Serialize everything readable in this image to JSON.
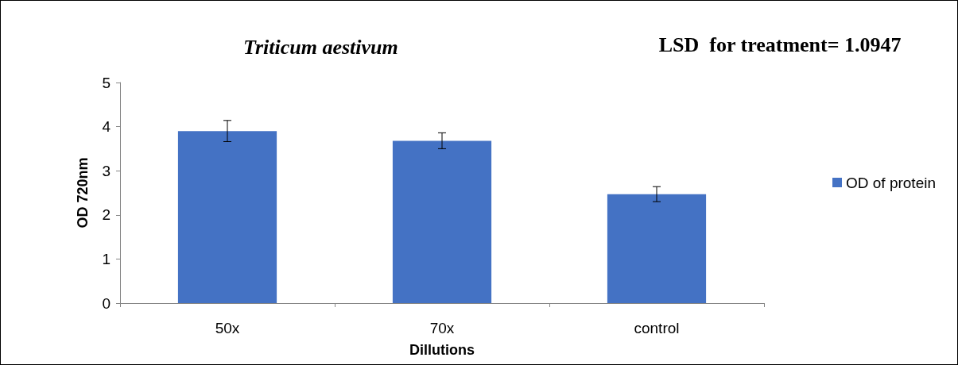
{
  "chart_data": {
    "type": "bar",
    "title": "Triticum aestivum",
    "xlabel": "Dillutions",
    "ylabel": "OD 720nm",
    "annotations": [
      "LSD  for treatment= 1.0947"
    ],
    "categories": [
      "50x",
      "70x",
      "control"
    ],
    "series": [
      {
        "name": "OD of protein",
        "color": "#4472c4",
        "values": [
          3.9,
          3.68,
          2.47
        ],
        "errors": [
          0.24,
          0.18,
          0.17
        ]
      }
    ],
    "ylim": [
      0,
      5
    ],
    "yticks": [
      0,
      1,
      2,
      3,
      4,
      5
    ],
    "grid": false,
    "legend": "right"
  }
}
